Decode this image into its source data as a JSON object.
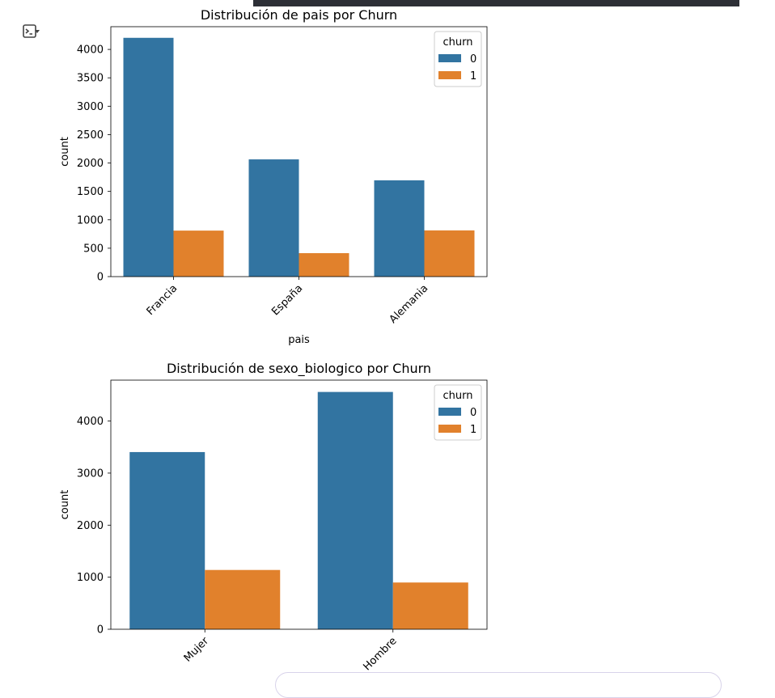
{
  "output": {
    "icon": "output-options-icon"
  },
  "chart_data": [
    {
      "type": "bar",
      "title": "Distribución de pais por Churn",
      "xlabel": "pais",
      "ylabel": "count",
      "categories": [
        "Francia",
        "España",
        "Alemania"
      ],
      "series": [
        {
          "name": "0",
          "values": [
            4204,
            2064,
            1695
          ],
          "color": "#3274a1"
        },
        {
          "name": "1",
          "values": [
            810,
            413,
            814
          ],
          "color": "#e1812c"
        }
      ],
      "ylim": [
        0,
        4400
      ],
      "yticks": [
        0,
        500,
        1000,
        1500,
        2000,
        2500,
        3000,
        3500,
        4000
      ],
      "xtick_rotation": 45,
      "legend": {
        "title": "churn",
        "placement": "top-right"
      }
    },
    {
      "type": "bar",
      "title": "Distribución de sexo_biologico por Churn",
      "xlabel": "",
      "ylabel": "count",
      "categories": [
        "Mujer",
        "Hombre"
      ],
      "series": [
        {
          "name": "0",
          "values": [
            3404,
            4559
          ],
          "color": "#3274a1"
        },
        {
          "name": "1",
          "values": [
            1139,
            898
          ],
          "color": "#e1812c"
        }
      ],
      "ylim": [
        0,
        4786
      ],
      "yticks": [
        0,
        1000,
        2000,
        3000,
        4000
      ],
      "xtick_rotation": 45,
      "legend": {
        "title": "churn",
        "placement": "top-right"
      }
    }
  ]
}
